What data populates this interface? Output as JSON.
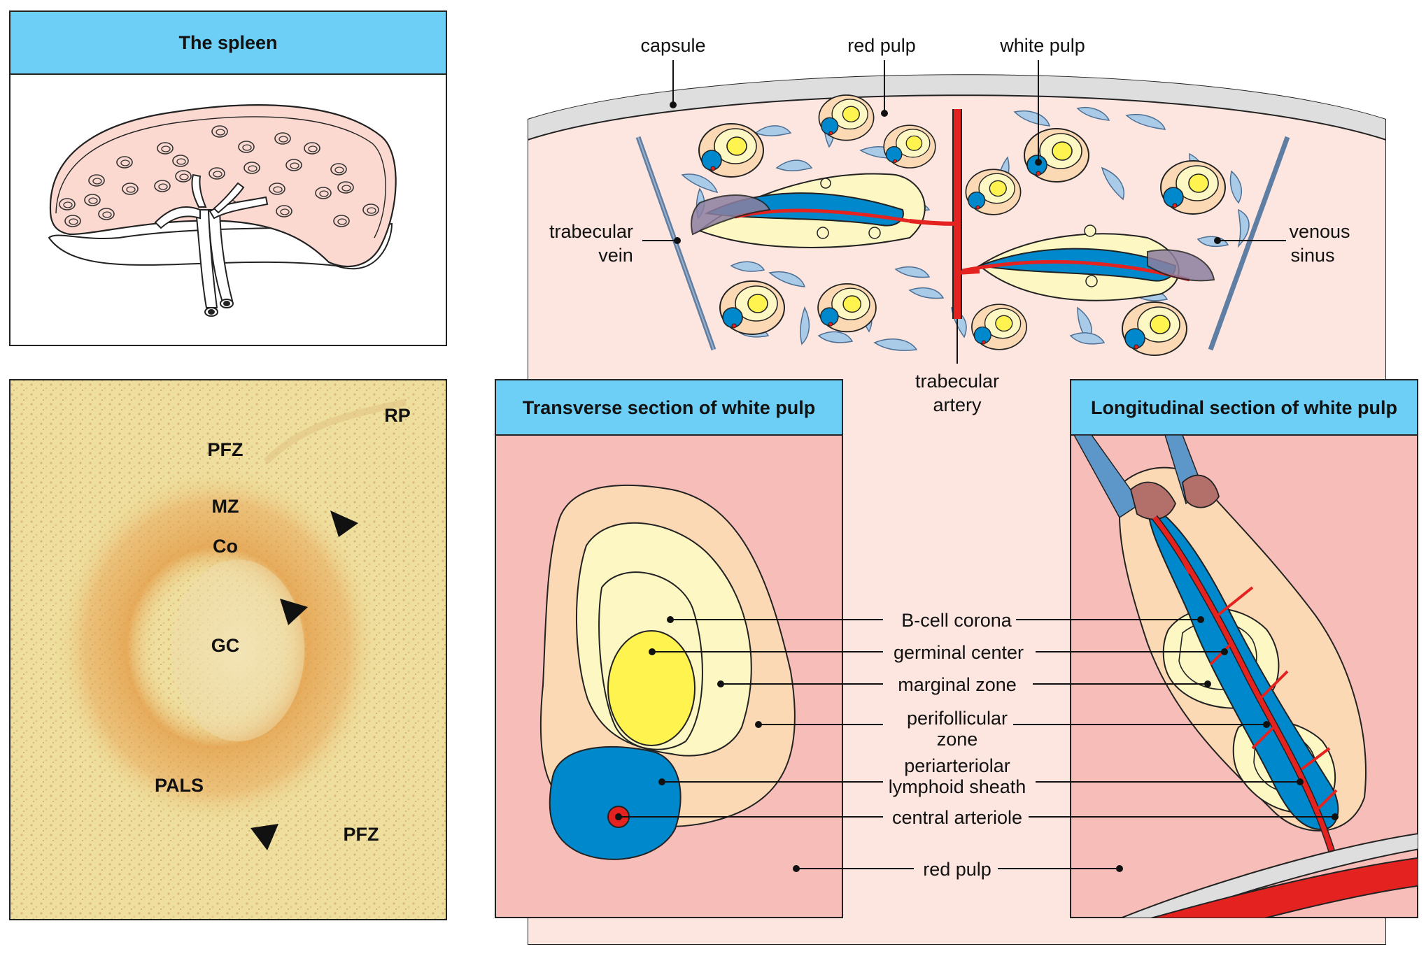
{
  "panels": {
    "spleen": {
      "title": "The spleen"
    },
    "micrograph": {
      "labels": {
        "rp": "RP",
        "pfz_top": "PFZ",
        "mz": "MZ",
        "co": "Co",
        "gc": "GC",
        "pals": "PALS",
        "pfz_bottom": "PFZ"
      }
    },
    "overview": {
      "labels": {
        "capsule": "capsule",
        "red_pulp": "red pulp",
        "white_pulp": "white pulp",
        "trabecular_vein_1": "trabecular",
        "trabecular_vein_2": "vein",
        "venous_sinus_1": "venous",
        "venous_sinus_2": "sinus",
        "trabecular_artery_1": "trabecular",
        "trabecular_artery_2": "artery"
      }
    },
    "transverse": {
      "title": "Transverse section of white pulp"
    },
    "longitudinal": {
      "title": "Longitudinal section of white pulp"
    },
    "legend": {
      "b_cell_corona": "B-cell corona",
      "germinal_center": "germinal center",
      "marginal_zone": "marginal zone",
      "perifollicular_1": "perifollicular",
      "perifollicular_2": "zone",
      "pals_1": "periarteriolar",
      "pals_2": "lymphoid sheath",
      "central_arteriole": "central arteriole",
      "red_pulp": "red pulp"
    }
  },
  "colors": {
    "header_blue": "#6dcff6",
    "red_pulp_pink": "#f7bdb8",
    "background_pink": "#fde6df",
    "perifollicular": "#fcd9b5",
    "marginal": "#fdf7c3",
    "germinal": "#fff34f",
    "pals_blue": "#0088cc",
    "artery_red": "#e42320",
    "sinus_blue": "#a9cbe8",
    "vein_gray": "#5f7ea3"
  }
}
